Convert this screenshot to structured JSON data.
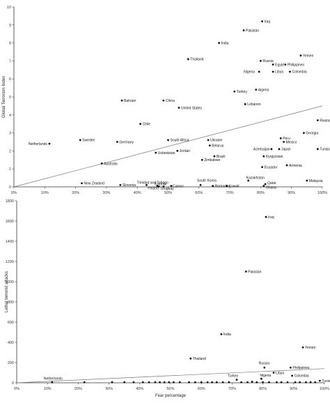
{
  "chart_data": [
    {
      "type": "scatter",
      "xlabel": "Fear percentage",
      "ylabel": "Global Terrorism Index",
      "xlim": [
        0,
        100
      ],
      "ylim": [
        0,
        10
      ],
      "x_ticks": [
        "0%",
        "10%",
        "20%",
        "30%",
        "40%",
        "50%",
        "60%",
        "70%",
        "80%",
        "90%",
        "100%"
      ],
      "y_ticks": [
        "0",
        "1",
        "2",
        "3",
        "4",
        "5",
        "6",
        "7",
        "8",
        "9",
        "10"
      ],
      "trendline": [
        [
          0,
          0
        ],
        [
          100,
          4.5
        ]
      ],
      "points": [
        {
          "label": "Iraq",
          "x": 80.5,
          "y": 9.2
        },
        {
          "label": "Pakistan",
          "x": 74.5,
          "y": 8.7
        },
        {
          "label": "India",
          "x": 66.5,
          "y": 8.0
        },
        {
          "label": "Yemen",
          "x": 93,
          "y": 7.3
        },
        {
          "label": "Thailand",
          "x": 56.5,
          "y": 7.1
        },
        {
          "label": "Russia",
          "x": 80,
          "y": 7.0
        },
        {
          "label": "Philippines",
          "x": 88,
          "y": 6.8
        },
        {
          "label": "Egypt",
          "x": 84,
          "y": 6.8
        },
        {
          "label": "Nigeria",
          "x": 79.5,
          "y": 6.4
        },
        {
          "label": "Libya",
          "x": 84,
          "y": 6.4
        },
        {
          "label": "Colombia",
          "x": 89.5,
          "y": 6.4
        },
        {
          "label": "Turkey",
          "x": 71.5,
          "y": 5.3
        },
        {
          "label": "Algeria",
          "x": 78.5,
          "y": 5.4
        },
        {
          "label": "Lebanon",
          "x": 75,
          "y": 4.6
        },
        {
          "label": "Bahrain",
          "x": 35,
          "y": 4.8
        },
        {
          "label": "China",
          "x": 48.5,
          "y": 4.8
        },
        {
          "label": "United States",
          "x": 53.5,
          "y": 4.4
        },
        {
          "label": "Rwanda",
          "x": 98.5,
          "y": 3.7
        },
        {
          "label": "Chile",
          "x": 41,
          "y": 3.5
        },
        {
          "label": "Georgia",
          "x": 94,
          "y": 3.0
        },
        {
          "label": "Netherlands",
          "x": 11.5,
          "y": 2.4
        },
        {
          "label": "Sweden",
          "x": 21.5,
          "y": 2.6
        },
        {
          "label": "Germany",
          "x": 33.5,
          "y": 2.5
        },
        {
          "label": "South Africa",
          "x": 50,
          "y": 2.6
        },
        {
          "label": "Ukraine",
          "x": 63,
          "y": 2.6
        },
        {
          "label": "Peru",
          "x": 86.5,
          "y": 2.7
        },
        {
          "label": "Mexico",
          "x": 87.5,
          "y": 2.5
        },
        {
          "label": "Belarus",
          "x": 63.5,
          "y": 2.3
        },
        {
          "label": "Azerbaijan",
          "x": 83.5,
          "y": 2.1
        },
        {
          "label": "Japan",
          "x": 86,
          "y": 2.1
        },
        {
          "label": "Tunisia",
          "x": 98.5,
          "y": 2.1
        },
        {
          "label": "Uzbekistan",
          "x": 46,
          "y": 1.9
        },
        {
          "label": "Jordan",
          "x": 53,
          "y": 2.0
        },
        {
          "label": "Brazil",
          "x": 65,
          "y": 1.7
        },
        {
          "label": "Kyrgyzstan",
          "x": 81,
          "y": 1.7
        },
        {
          "label": "Zimbabwe",
          "x": 61,
          "y": 1.5
        },
        {
          "label": "Australia",
          "x": 28.5,
          "y": 1.3
        },
        {
          "label": "Armenia",
          "x": 88.5,
          "y": 1.2
        },
        {
          "label": "Ecuador",
          "x": 80.5,
          "y": 1.1
        },
        {
          "label": "Malaysia",
          "x": 95,
          "y": 0.35
        },
        {
          "label": "Kazakhstan",
          "x": 76,
          "y": 0.35
        },
        {
          "label": "Qatar",
          "x": 81.5,
          "y": 0.15
        },
        {
          "label": "Ghana",
          "x": 81,
          "y": 0.05
        },
        {
          "label": "New Zealand",
          "x": 22,
          "y": 0.2
        },
        {
          "label": "Slovenia",
          "x": 34.5,
          "y": 0.1
        },
        {
          "label": "Trinidad and Tobago",
          "x": 43,
          "y": 0.1
        },
        {
          "label": "Estonia",
          "x": 46.5,
          "y": 0.05
        },
        {
          "label": "Poland",
          "x": 47,
          "y": 0.02
        },
        {
          "label": "Uruguay",
          "x": 48.5,
          "y": 0.02
        },
        {
          "label": "Cyprus",
          "x": 51,
          "y": 0.05
        },
        {
          "label": "South Korea",
          "x": 60.5,
          "y": 0.1
        },
        {
          "label": "Romania",
          "x": 64.5,
          "y": 0.05
        },
        {
          "label": "Kuwait",
          "x": 69,
          "y": 0.05
        }
      ]
    },
    {
      "type": "scatter",
      "xlabel": "Fear percentage",
      "ylabel": "Lethal terrorist attacks",
      "xlim": [
        0,
        100
      ],
      "ylim": [
        0,
        1800
      ],
      "x_ticks": [
        "0%",
        "10%",
        "20%",
        "30%",
        "40%",
        "50%",
        "60%",
        "70%",
        "80%",
        "90%",
        "100%"
      ],
      "y_ticks": [
        "0",
        "200",
        "400",
        "600",
        "800",
        "1000",
        "1200",
        "1400",
        "1600",
        "1800"
      ],
      "trendline": [
        [
          0,
          0
        ],
        [
          100,
          140
        ]
      ],
      "points": [
        {
          "label": "Iraq",
          "x": 81,
          "y": 1640
        },
        {
          "label": "Pakistan",
          "x": 74.5,
          "y": 1100
        },
        {
          "label": "India",
          "x": 66.5,
          "y": 480
        },
        {
          "label": "Yemen",
          "x": 93,
          "y": 350
        },
        {
          "label": "Thailand",
          "x": 56.5,
          "y": 240
        },
        {
          "label": "Russia",
          "x": 80.5,
          "y": 150
        },
        {
          "label": "Libya",
          "x": 83.5,
          "y": 100
        },
        {
          "label": "Philippines",
          "x": 89,
          "y": 150
        },
        {
          "label": "Turkey",
          "x": 71.5,
          "y": 30
        },
        {
          "label": "Nigeria",
          "x": 79.5,
          "y": 40
        },
        {
          "label": "Colombia",
          "x": 89.5,
          "y": 70
        },
        {
          "label": "Tunisia",
          "x": 98.5,
          "y": 20
        },
        {
          "label": "Netherlands",
          "x": 11.5,
          "y": 5
        },
        {
          "label": "",
          "x": 22,
          "y": 5
        },
        {
          "label": "",
          "x": 31,
          "y": 5
        },
        {
          "label": "",
          "x": 35,
          "y": 5
        },
        {
          "label": "",
          "x": 38,
          "y": 5
        },
        {
          "label": "",
          "x": 41,
          "y": 5
        },
        {
          "label": "",
          "x": 43,
          "y": 5
        },
        {
          "label": "",
          "x": 45,
          "y": 5
        },
        {
          "label": "",
          "x": 46.5,
          "y": 5
        },
        {
          "label": "",
          "x": 48,
          "y": 5
        },
        {
          "label": "",
          "x": 49.5,
          "y": 5
        },
        {
          "label": "",
          "x": 51,
          "y": 5
        },
        {
          "label": "",
          "x": 53,
          "y": 5
        },
        {
          "label": "",
          "x": 56,
          "y": 5
        },
        {
          "label": "",
          "x": 58,
          "y": 5
        },
        {
          "label": "",
          "x": 60,
          "y": 5
        },
        {
          "label": "",
          "x": 62,
          "y": 5
        },
        {
          "label": "",
          "x": 63.5,
          "y": 5
        },
        {
          "label": "",
          "x": 65,
          "y": 5
        },
        {
          "label": "",
          "x": 67,
          "y": 5
        },
        {
          "label": "",
          "x": 69,
          "y": 5
        },
        {
          "label": "",
          "x": 73,
          "y": 5
        },
        {
          "label": "",
          "x": 75,
          "y": 5
        },
        {
          "label": "",
          "x": 76.5,
          "y": 10
        },
        {
          "label": "",
          "x": 78,
          "y": 5
        },
        {
          "label": "",
          "x": 80,
          "y": 5
        },
        {
          "label": "",
          "x": 82,
          "y": 5
        },
        {
          "label": "",
          "x": 84.5,
          "y": 5
        },
        {
          "label": "",
          "x": 86,
          "y": 5
        },
        {
          "label": "",
          "x": 88,
          "y": 5
        },
        {
          "label": "",
          "x": 90.5,
          "y": 5
        },
        {
          "label": "",
          "x": 92,
          "y": 5
        },
        {
          "label": "",
          "x": 94,
          "y": 5
        },
        {
          "label": "",
          "x": 95.5,
          "y": 5
        },
        {
          "label": "",
          "x": 97,
          "y": 5
        }
      ]
    }
  ]
}
